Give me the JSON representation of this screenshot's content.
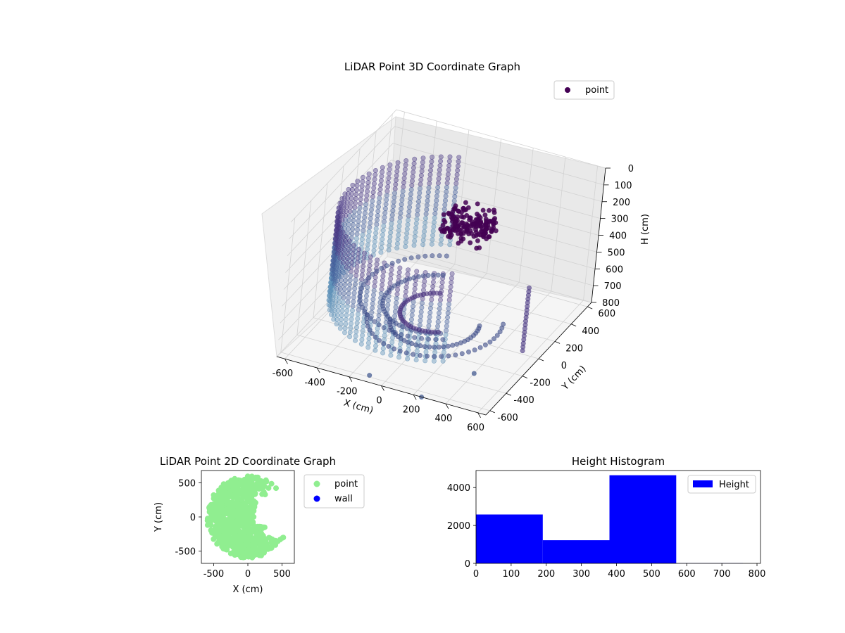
{
  "figure": {
    "background": "#ffffff"
  },
  "chart_data": [
    {
      "id": "scatter3d",
      "type": "scatter",
      "projection": "3d",
      "title": "LiDAR Point 3D Coordinate Graph",
      "xlabel": "X (cm)",
      "ylabel": "Y (cm)",
      "zlabel": "H (cm)",
      "x_ticks": [
        -600,
        -400,
        -200,
        0,
        200,
        400,
        600
      ],
      "y_ticks": [
        -600,
        -400,
        -200,
        0,
        200,
        400,
        600
      ],
      "z_ticks": [
        0,
        100,
        200,
        300,
        400,
        500,
        600,
        700,
        800
      ],
      "xlim": [
        -650,
        650
      ],
      "ylim": [
        -650,
        650
      ],
      "zlim": [
        0,
        800
      ],
      "z_axis_inverted": true,
      "colormap": "viridis (purple to teal)",
      "color_dark": "#440154",
      "color_mid": "#3b528b",
      "color_light": "#5b8fb8",
      "grid": true,
      "legend": {
        "position": "top-right",
        "entries": [
          {
            "label": "point",
            "color": "#440154"
          }
        ]
      },
      "series": [
        {
          "name": "point",
          "description_shape": "dense semicircular wall of points, radius ~600 cm, heights ~100-700 cm, with a dark cluster near H 150-300 and sparse lower rings near H 700-800"
        }
      ],
      "outliers": [
        {
          "x": -100,
          "y": -600,
          "h": 790
        },
        {
          "x": 400,
          "y": -300,
          "h": 800
        },
        {
          "x": 250,
          "y": -650,
          "h": 800
        }
      ]
    },
    {
      "id": "scatter2d",
      "type": "scatter",
      "title": "LiDAR Point 2D Coordinate Graph",
      "xlabel": "X (cm)",
      "ylabel": "Y (cm)",
      "x_ticks": [
        -500,
        0,
        500
      ],
      "y_ticks": [
        -500,
        0,
        500
      ],
      "xlim": [
        -680,
        680
      ],
      "ylim": [
        -680,
        680
      ],
      "legend": {
        "position": "outside-right",
        "entries": [
          {
            "label": "point",
            "color": "#90ee90"
          },
          {
            "label": "wall",
            "color": "#0000ff"
          }
        ]
      },
      "series": [
        {
          "name": "point",
          "color": "#90ee90"
        },
        {
          "name": "wall",
          "color": "#0000ff"
        }
      ]
    },
    {
      "id": "histogram",
      "type": "bar",
      "title": "Height Histogram",
      "x_ticks": [
        0,
        100,
        200,
        300,
        400,
        500,
        600,
        700,
        800
      ],
      "y_ticks": [
        0,
        2000,
        4000
      ],
      "xlim": [
        0,
        810
      ],
      "ylim": [
        0,
        4900
      ],
      "bin_edges": [
        0,
        190,
        380,
        570,
        760
      ],
      "values": [
        2580,
        1220,
        4650,
        10
      ],
      "color": "#0000ff",
      "legend": {
        "position": "top-right",
        "entries": [
          {
            "label": "Height",
            "color": "#0000ff"
          }
        ]
      }
    }
  ]
}
